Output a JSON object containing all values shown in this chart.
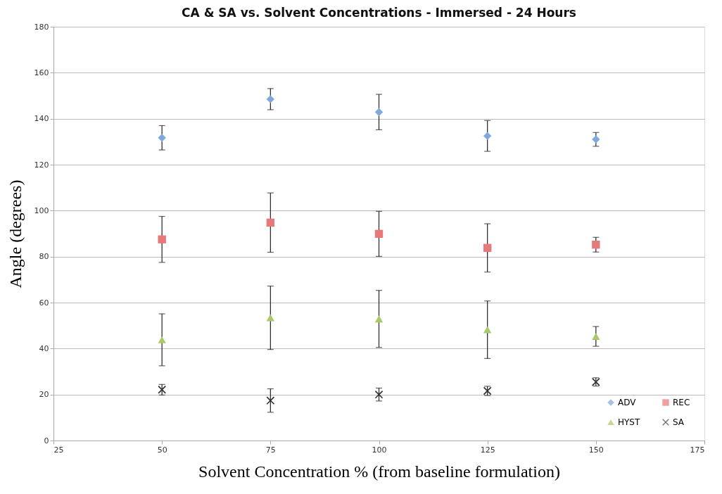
{
  "chart_data": {
    "type": "scatter",
    "title": "CA & SA vs. Solvent Concentrations - Immersed - 24 Hours",
    "xlabel": "Solvent Concentration % (from baseline formulation)",
    "ylabel": "Angle (degrees)",
    "x": [
      50,
      75,
      100,
      125,
      150
    ],
    "series": [
      {
        "name": "ADV",
        "color": "#7fa9dc",
        "marker": "diamond",
        "values": [
          131.7,
          148.5,
          142.9,
          132.5,
          131.0
        ],
        "errors": [
          5.3,
          4.6,
          7.7,
          6.7,
          3.0
        ]
      },
      {
        "name": "REC",
        "color": "#e8797a",
        "marker": "square",
        "values": [
          87.5,
          94.8,
          89.9,
          83.8,
          85.2
        ],
        "errors": [
          10.0,
          12.9,
          9.8,
          10.5,
          3.2
        ]
      },
      {
        "name": "HYST",
        "color": "#a8c96a",
        "marker": "triangle",
        "values": [
          43.8,
          53.4,
          52.9,
          48.2,
          45.3
        ],
        "errors": [
          11.3,
          13.8,
          12.4,
          12.5,
          4.3
        ]
      },
      {
        "name": "SA",
        "color": "#333333",
        "marker": "cross",
        "values": [
          22.1,
          17.4,
          20.0,
          21.6,
          25.5
        ],
        "errors": [
          2.3,
          5.1,
          2.8,
          2.0,
          1.8
        ]
      }
    ],
    "xlim": [
      25,
      175
    ],
    "xticks": [
      25,
      50,
      75,
      100,
      125,
      150,
      175
    ],
    "ylim": [
      0,
      180
    ],
    "yticks": [
      0,
      20,
      40,
      60,
      80,
      100,
      120,
      140,
      160,
      180
    ],
    "grid": "y",
    "legend": "bottom right"
  }
}
